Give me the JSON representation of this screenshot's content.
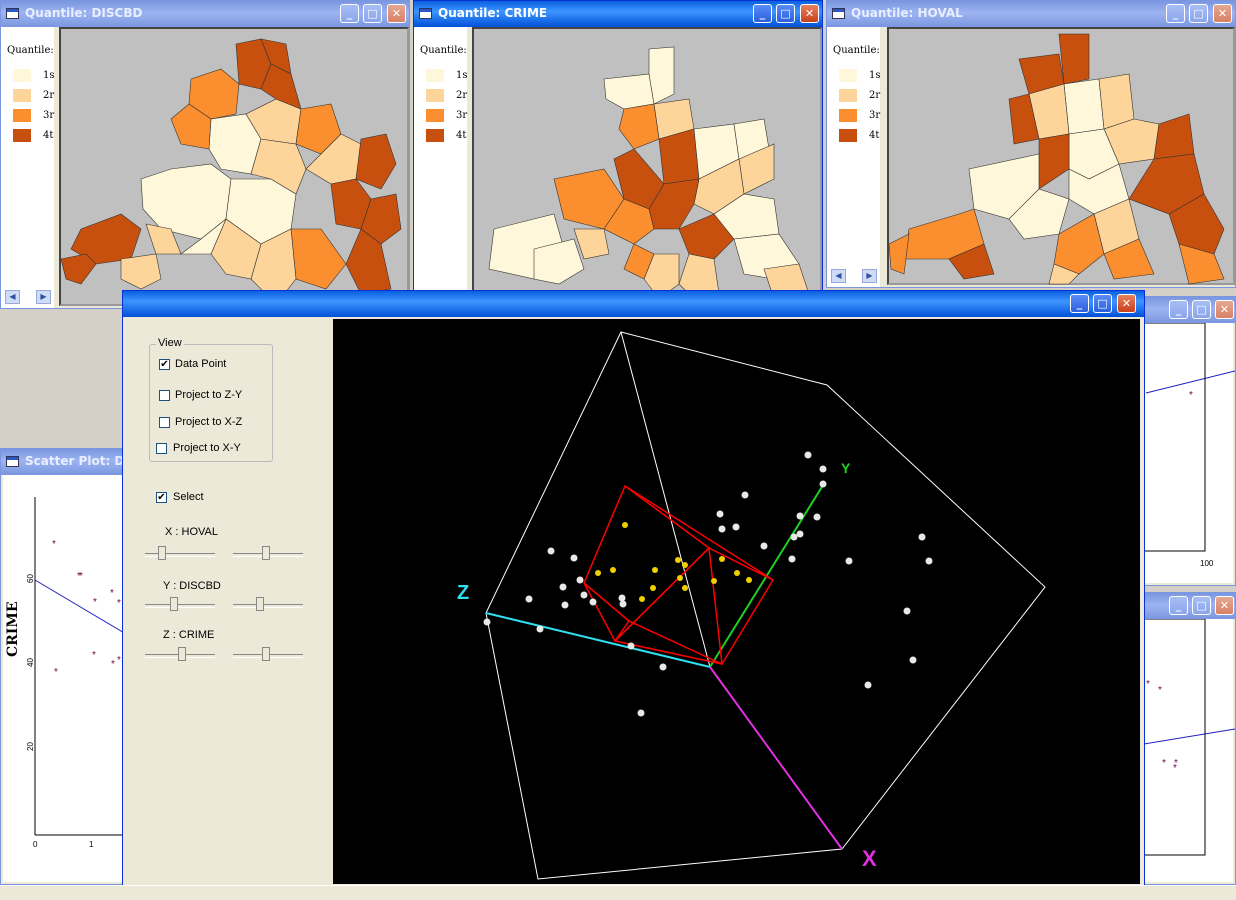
{
  "quantile_legend": {
    "label": "Quantile:",
    "classes": [
      {
        "label": "1s",
        "color": "#fff7d9"
      },
      {
        "label": "2r",
        "color": "#fdd49a"
      },
      {
        "label": "3r",
        "color": "#fb8f2f"
      },
      {
        "label": "4t",
        "color": "#c8500e"
      }
    ]
  },
  "windows": {
    "discbd": {
      "title": "Quantile: DISCBD"
    },
    "crime": {
      "title": "Quantile: CRIME"
    },
    "hoval": {
      "title": "Quantile: HOVAL"
    },
    "scatter": {
      "title": "Scatter Plot: DIS"
    }
  },
  "title_buttons": {
    "minimize": "_",
    "maximize": "□",
    "close": "✕"
  },
  "scroll_buttons": {
    "left": "◀",
    "right": "▶"
  },
  "view3d": {
    "view_group_label": "View",
    "options": [
      {
        "label": "Data Point",
        "checked": true
      },
      {
        "label": "Project to Z-Y",
        "checked": false
      },
      {
        "label": "Project to X-Z",
        "checked": false
      },
      {
        "label": "Project to X-Y",
        "checked": false
      }
    ],
    "select": {
      "label": "Select",
      "checked": true
    },
    "check_mark": "✔",
    "axes": [
      {
        "label": "X : HOVAL"
      },
      {
        "label": "Y : DISCBD"
      },
      {
        "label": "Z : CRIME"
      }
    ],
    "axis_letters": {
      "x": "X",
      "y": "Y",
      "z": "Z"
    }
  },
  "scatter": {
    "ylabel": "CRIME",
    "yticks": [
      "60",
      "40",
      "20"
    ],
    "xticks": [
      "0",
      "1"
    ]
  },
  "right_partial": {
    "top_tick": "100"
  },
  "colors": {
    "map_bg": "#c0c0c0",
    "cube": "#ffffff",
    "selection_box": "#ff0000",
    "axis_x": "#e030e0",
    "axis_y": "#20d020",
    "axis_z": "#30e0f0",
    "selected_point": "#f0d000",
    "point": "#e8e8e8",
    "scatter_point": "#700040"
  }
}
